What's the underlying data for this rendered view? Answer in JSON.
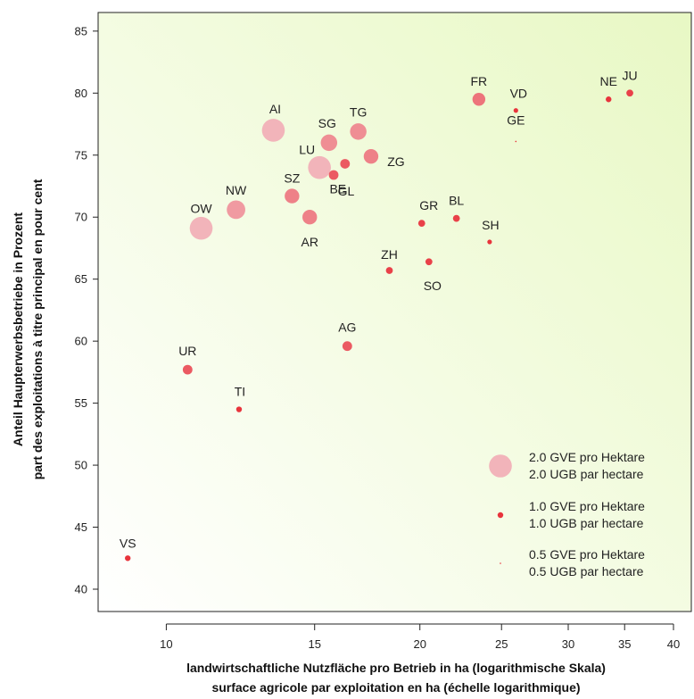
{
  "chart_data": {
    "type": "scatter",
    "xscale": "log",
    "xlabel_lines": [
      "landwirtschaftliche Nutzfläche pro Betrieb in ha (logarithmische Skala)",
      "surface agricole par exploitation en ha (échelle logarithmique)"
    ],
    "ylabel_lines": [
      "Anteil Haupterwerbsbetriebe in Prozent",
      "part des exploitations à titre principal en pour cent"
    ],
    "xlim": [
      8.3,
      42
    ],
    "ylim": [
      38.2,
      86.5
    ],
    "x_ticks": [
      10,
      15,
      20,
      25,
      30,
      35,
      40
    ],
    "y_ticks": [
      40,
      45,
      50,
      55,
      60,
      65,
      70,
      75,
      80,
      85
    ],
    "size_series_name": "GVE pro Hektare / UGB par hectare",
    "points": [
      {
        "label": "AI",
        "x": 13.4,
        "y": 77.0,
        "gve": 2.0
      },
      {
        "label": "OW",
        "x": 11.0,
        "y": 69.1,
        "gve": 2.0
      },
      {
        "label": "NW",
        "x": 12.1,
        "y": 70.6,
        "gve": 1.8
      },
      {
        "label": "LU",
        "x": 15.2,
        "y": 74.0,
        "gve": 2.0
      },
      {
        "label": "SG",
        "x": 15.6,
        "y": 76.0,
        "gve": 1.7
      },
      {
        "label": "TG",
        "x": 16.9,
        "y": 76.9,
        "gve": 1.7
      },
      {
        "label": "ZG",
        "x": 17.5,
        "y": 74.9,
        "gve": 1.6
      },
      {
        "label": "GL",
        "x": 15.8,
        "y": 73.4,
        "gve": 1.3
      },
      {
        "label": "BE",
        "x": 16.3,
        "y": 74.3,
        "gve": 1.3
      },
      {
        "label": "SZ",
        "x": 14.1,
        "y": 71.7,
        "gve": 1.6
      },
      {
        "label": "AR",
        "x": 14.8,
        "y": 70.0,
        "gve": 1.6
      },
      {
        "label": "FR",
        "x": 23.5,
        "y": 79.5,
        "gve": 1.5
      },
      {
        "label": "VD",
        "x": 26.0,
        "y": 78.6,
        "gve": 0.9
      },
      {
        "label": "GE",
        "x": 26.0,
        "y": 76.1,
        "gve": 0.5
      },
      {
        "label": "NE",
        "x": 33.5,
        "y": 79.5,
        "gve": 1.0
      },
      {
        "label": "JU",
        "x": 35.5,
        "y": 80.0,
        "gve": 1.1
      },
      {
        "label": "GR",
        "x": 20.1,
        "y": 69.5,
        "gve": 1.1
      },
      {
        "label": "BL",
        "x": 22.1,
        "y": 69.9,
        "gve": 1.1
      },
      {
        "label": "SH",
        "x": 24.2,
        "y": 68.0,
        "gve": 0.9
      },
      {
        "label": "ZH",
        "x": 18.4,
        "y": 65.7,
        "gve": 1.1
      },
      {
        "label": "SO",
        "x": 20.5,
        "y": 66.4,
        "gve": 1.1
      },
      {
        "label": "AG",
        "x": 16.4,
        "y": 59.6,
        "gve": 1.3
      },
      {
        "label": "UR",
        "x": 10.6,
        "y": 57.7,
        "gve": 1.3
      },
      {
        "label": "TI",
        "x": 12.2,
        "y": 54.5,
        "gve": 1.0
      },
      {
        "label": "VS",
        "x": 9.0,
        "y": 42.5,
        "gve": 1.0
      }
    ],
    "legend": [
      {
        "gve": 2.0,
        "line1": "2.0 GVE pro Hektare",
        "line2": "2.0 UGB par hectare"
      },
      {
        "gve": 1.0,
        "line1": "1.0 GVE pro Hektare",
        "line2": "1.0 UGB par hectare"
      },
      {
        "gve": 0.5,
        "line1": "0.5 GVE pro Hektare",
        "line2": "0.5 UGB par hectare"
      }
    ],
    "legend_position": "bottom-right",
    "colors": {
      "background_top": "#e8f8c4",
      "background_bottom": "#ffffff",
      "point_low": "#e8343c",
      "point_high": "#f2b4ba"
    }
  }
}
